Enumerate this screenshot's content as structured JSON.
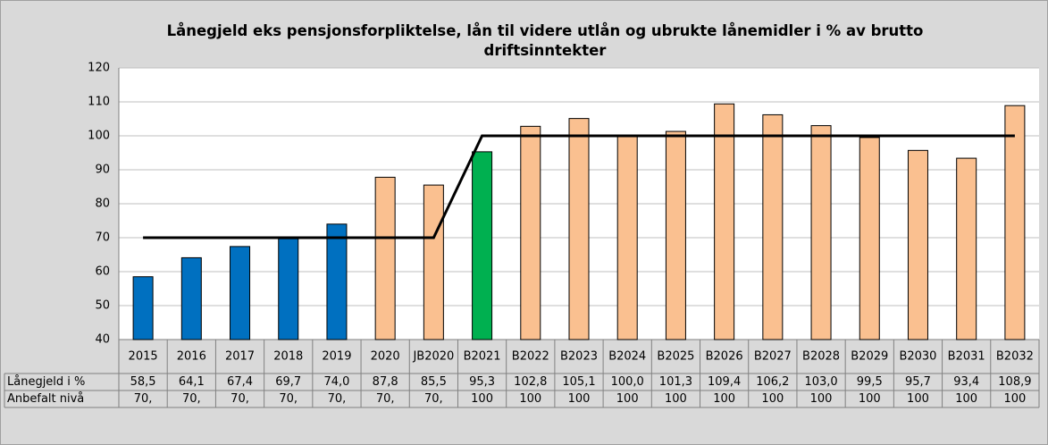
{
  "chart_data": {
    "type": "bar",
    "title": "Lånegjeld eks pensjonsforpliktelse, lån til videre utlån og  ubrukte lånemidler i % av brutto driftsinntekter",
    "categories": [
      "2015",
      "2016",
      "2017",
      "2018",
      "2019",
      "2020",
      "JB2020",
      "B2021",
      "B2022",
      "B2023",
      "B2024",
      "B2025",
      "B2026",
      "B2027",
      "B2028",
      "B2029",
      "B2030",
      "B2031",
      "B2032"
    ],
    "series": [
      {
        "name": "Lånegjeld i %",
        "type": "bar",
        "colors": [
          "#0070c0",
          "#0070c0",
          "#0070c0",
          "#0070c0",
          "#0070c0",
          "#fac090",
          "#fac090",
          "#00b050",
          "#fac090",
          "#fac090",
          "#fac090",
          "#fac090",
          "#fac090",
          "#fac090",
          "#fac090",
          "#fac090",
          "#fac090",
          "#fac090",
          "#fac090"
        ],
        "values": [
          58.5,
          64.1,
          67.4,
          69.7,
          74.0,
          87.8,
          85.5,
          95.3,
          102.8,
          105.1,
          100.0,
          101.3,
          109.4,
          106.2,
          103.0,
          99.5,
          95.7,
          93.4,
          108.9
        ],
        "value_labels": [
          "58,5",
          "64,1",
          "67,4",
          "69,7",
          "74,0",
          "87,8",
          "85,5",
          "95,3",
          "102,8",
          "105,1",
          "100,0",
          "101,3",
          "109,4",
          "106,2",
          "103,0",
          "99,5",
          "95,7",
          "93,4",
          "108,9"
        ]
      },
      {
        "name": "Anbefalt nivå",
        "type": "line",
        "color": "#000000",
        "values": [
          70,
          70,
          70,
          70,
          70,
          70,
          70,
          100,
          100,
          100,
          100,
          100,
          100,
          100,
          100,
          100,
          100,
          100,
          100
        ],
        "value_labels": [
          "70,",
          "70,",
          "70,",
          "70,",
          "70,",
          "70,",
          "70,",
          "100",
          "100",
          "100",
          "100",
          "100",
          "100",
          "100",
          "100",
          "100",
          "100",
          "100",
          "100"
        ]
      }
    ],
    "ylim": [
      40,
      120
    ],
    "yticks": [
      40,
      50,
      60,
      70,
      80,
      90,
      100,
      110,
      120
    ],
    "grid": true
  }
}
